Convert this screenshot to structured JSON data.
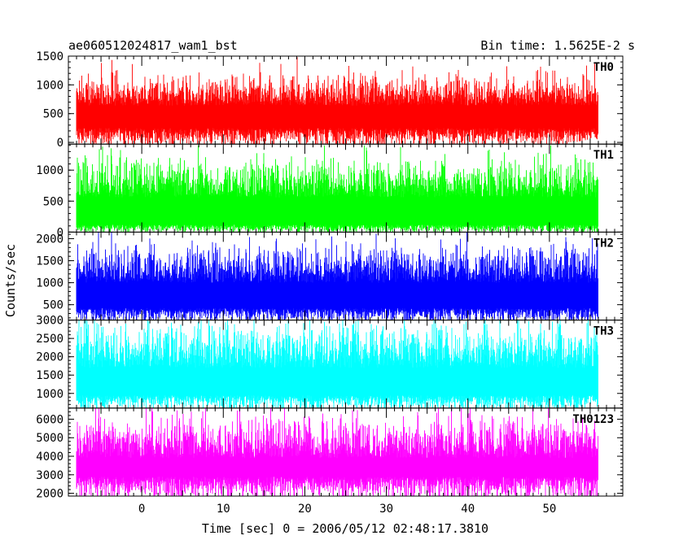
{
  "chart_data": {
    "type": "line",
    "title_left": "ae060512024817_wam1_bst",
    "title_right": "Bin time: 1.5625E-2 s",
    "xlabel": "Time [sec] 0 = 2006/05/12 02:48:17.3810",
    "ylabel": "Counts/sec",
    "xlim": [
      -9,
      59
    ],
    "x_data_range": [
      -8,
      56
    ],
    "x_ticks": [
      0,
      10,
      20,
      30,
      40,
      50
    ],
    "grid": false,
    "panels": [
      {
        "name": "TH0",
        "color": "#ff0000",
        "ylim": [
          -30,
          1500
        ],
        "y_ticks": [
          0,
          500,
          1000,
          1500
        ],
        "base_level": 250,
        "mean": 640,
        "spread": 200,
        "peak": 1500
      },
      {
        "name": "TH1",
        "color": "#00ff00",
        "ylim": [
          0,
          1420
        ],
        "y_ticks": [
          0,
          500,
          1000
        ],
        "base_level": 120,
        "mean": 560,
        "spread": 230,
        "peak": 1400
      },
      {
        "name": "TH2",
        "color": "#0000ff",
        "ylim": [
          150,
          2150
        ],
        "y_ticks": [
          500,
          1000,
          1500,
          2000
        ],
        "base_level": 420,
        "mean": 1000,
        "spread": 320,
        "peak": 2150
      },
      {
        "name": "TH3",
        "color": "#00ffff",
        "ylim": [
          600,
          3000
        ],
        "y_ticks": [
          1000,
          1500,
          2000,
          2500,
          3000
        ],
        "base_level": 950,
        "mean": 1700,
        "spread": 450,
        "peak": 3000
      },
      {
        "name": "TH0123",
        "color": "#ff00ff",
        "ylim": [
          1850,
          6600
        ],
        "y_ticks": [
          2000,
          3000,
          4000,
          5000,
          6000
        ],
        "base_level": 2900,
        "mean": 3900,
        "spread": 850,
        "peak": 6600
      }
    ]
  }
}
